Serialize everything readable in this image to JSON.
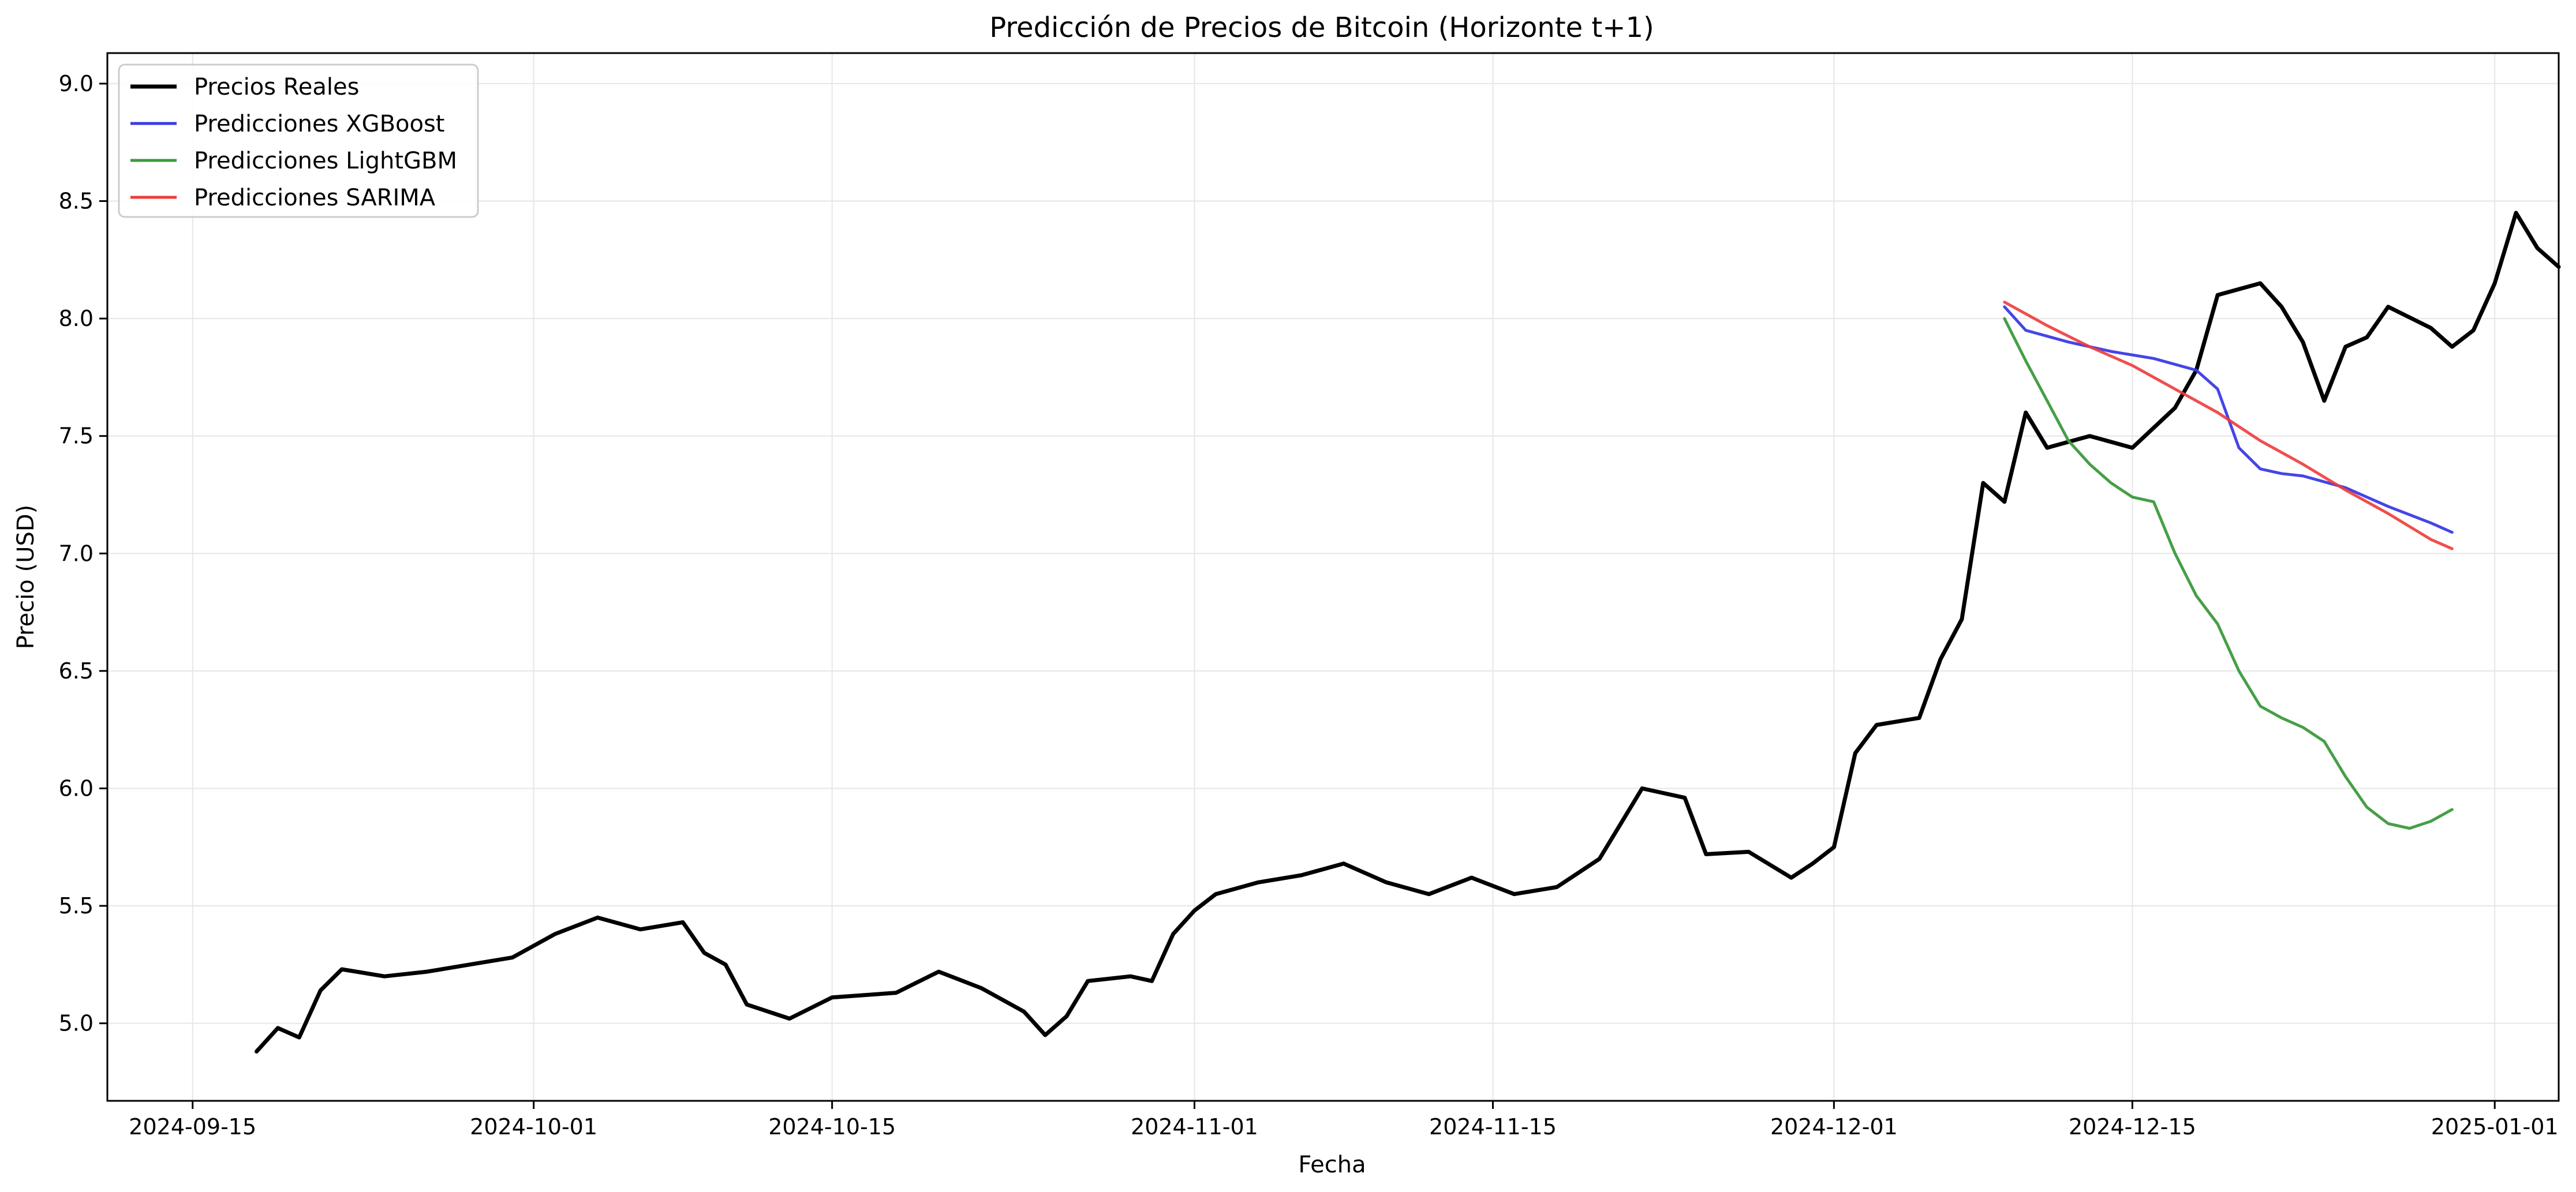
{
  "chart_data": {
    "type": "line",
    "title": "Predicción de Precios de Bitcoin (Horizonte t+1)",
    "xlabel": "Fecha",
    "ylabel": "Precio (USD)",
    "xlim": [
      "2024-09-11",
      "2025-01-04"
    ],
    "ylim": [
      4.67,
      9.13
    ],
    "x_ticks": [
      "2024-09-15",
      "2024-10-01",
      "2024-10-15",
      "2024-11-01",
      "2024-11-15",
      "2024-12-01",
      "2024-12-15",
      "2025-01-01"
    ],
    "y_ticks": [
      "5.0",
      "5.5",
      "6.0",
      "6.5",
      "7.0",
      "7.5",
      "8.0",
      "8.5",
      "9.0"
    ],
    "grid": true,
    "legend_position": "top-left",
    "series": [
      {
        "name": "Precios Reales",
        "color": "#000000",
        "points": [
          [
            "2024-09-18",
            4.88
          ],
          [
            "2024-09-19",
            4.98
          ],
          [
            "2024-09-20",
            4.94
          ],
          [
            "2024-09-21",
            5.14
          ],
          [
            "2024-09-22",
            5.23
          ],
          [
            "2024-09-24",
            5.2
          ],
          [
            "2024-09-26",
            5.22
          ],
          [
            "2024-09-28",
            5.25
          ],
          [
            "2024-09-30",
            5.28
          ],
          [
            "2024-10-02",
            5.38
          ],
          [
            "2024-10-04",
            5.45
          ],
          [
            "2024-10-06",
            5.4
          ],
          [
            "2024-10-08",
            5.43
          ],
          [
            "2024-10-09",
            5.3
          ],
          [
            "2024-10-10",
            5.25
          ],
          [
            "2024-10-11",
            5.08
          ],
          [
            "2024-10-13",
            5.02
          ],
          [
            "2024-10-15",
            5.11
          ],
          [
            "2024-10-18",
            5.13
          ],
          [
            "2024-10-20",
            5.22
          ],
          [
            "2024-10-22",
            5.15
          ],
          [
            "2024-10-24",
            5.05
          ],
          [
            "2024-10-25",
            4.95
          ],
          [
            "2024-10-26",
            5.03
          ],
          [
            "2024-10-27",
            5.18
          ],
          [
            "2024-10-29",
            5.2
          ],
          [
            "2024-10-30",
            5.18
          ],
          [
            "2024-10-31",
            5.38
          ],
          [
            "2024-11-01",
            5.48
          ],
          [
            "2024-11-02",
            5.55
          ],
          [
            "2024-11-04",
            5.6
          ],
          [
            "2024-11-06",
            5.63
          ],
          [
            "2024-11-08",
            5.68
          ],
          [
            "2024-11-10",
            5.6
          ],
          [
            "2024-11-12",
            5.55
          ],
          [
            "2024-11-14",
            5.62
          ],
          [
            "2024-11-16",
            5.55
          ],
          [
            "2024-11-18",
            5.58
          ],
          [
            "2024-11-20",
            5.7
          ],
          [
            "2024-11-21",
            5.85
          ],
          [
            "2024-11-22",
            6.0
          ],
          [
            "2024-11-24",
            5.96
          ],
          [
            "2024-11-25",
            5.72
          ],
          [
            "2024-11-27",
            5.73
          ],
          [
            "2024-11-29",
            5.62
          ],
          [
            "2024-11-30",
            5.68
          ],
          [
            "2024-12-01",
            5.75
          ],
          [
            "2024-12-02",
            6.15
          ],
          [
            "2024-12-03",
            6.27
          ],
          [
            "2024-12-05",
            6.3
          ],
          [
            "2024-12-06",
            6.55
          ],
          [
            "2024-12-07",
            6.72
          ],
          [
            "2024-12-08",
            7.3
          ],
          [
            "2024-12-09",
            7.22
          ],
          [
            "2024-12-10",
            7.6
          ],
          [
            "2024-12-11",
            7.45
          ],
          [
            "2024-12-13",
            7.5
          ],
          [
            "2024-12-15",
            7.45
          ],
          [
            "2024-12-17",
            7.62
          ],
          [
            "2024-12-18",
            7.78
          ],
          [
            "2024-12-19",
            8.1
          ],
          [
            "2024-12-21",
            8.15
          ],
          [
            "2024-12-22",
            8.05
          ],
          [
            "2024-12-23",
            7.9
          ],
          [
            "2024-12-24",
            7.65
          ],
          [
            "2024-12-25",
            7.88
          ],
          [
            "2024-12-26",
            7.92
          ],
          [
            "2024-12-27",
            8.05
          ],
          [
            "2024-12-29",
            7.96
          ],
          [
            "2024-12-30",
            7.88
          ],
          [
            "2024-12-31",
            7.95
          ],
          [
            "2025-01-01",
            8.15
          ],
          [
            "2025-01-02",
            8.45
          ],
          [
            "2025-01-03",
            8.3
          ],
          [
            "2025-01-04",
            8.22
          ]
        ]
      },
      {
        "name": "Predicciones XGBoost",
        "color": "#3b3be6",
        "points": [
          [
            "2024-12-09",
            8.05
          ],
          [
            "2024-12-10",
            7.95
          ],
          [
            "2024-12-12",
            7.9
          ],
          [
            "2024-12-14",
            7.86
          ],
          [
            "2024-12-16",
            7.83
          ],
          [
            "2024-12-18",
            7.78
          ],
          [
            "2024-12-19",
            7.7
          ],
          [
            "2024-12-20",
            7.45
          ],
          [
            "2024-12-21",
            7.36
          ],
          [
            "2024-12-22",
            7.34
          ],
          [
            "2024-12-23",
            7.33
          ],
          [
            "2024-12-25",
            7.28
          ],
          [
            "2024-12-27",
            7.2
          ],
          [
            "2024-12-29",
            7.13
          ],
          [
            "2024-12-30",
            7.09
          ]
        ]
      },
      {
        "name": "Predicciones LightGBM",
        "color": "#3c9a3c",
        "points": [
          [
            "2024-12-09",
            8.0
          ],
          [
            "2024-12-10",
            7.82
          ],
          [
            "2024-12-11",
            7.65
          ],
          [
            "2024-12-12",
            7.48
          ],
          [
            "2024-12-13",
            7.38
          ],
          [
            "2024-12-14",
            7.3
          ],
          [
            "2024-12-15",
            7.24
          ],
          [
            "2024-12-16",
            7.22
          ],
          [
            "2024-12-17",
            7.0
          ],
          [
            "2024-12-18",
            6.82
          ],
          [
            "2024-12-19",
            6.7
          ],
          [
            "2024-12-20",
            6.5
          ],
          [
            "2024-12-21",
            6.35
          ],
          [
            "2024-12-22",
            6.3
          ],
          [
            "2024-12-23",
            6.26
          ],
          [
            "2024-12-24",
            6.2
          ],
          [
            "2024-12-25",
            6.05
          ],
          [
            "2024-12-26",
            5.92
          ],
          [
            "2024-12-27",
            5.85
          ],
          [
            "2024-12-28",
            5.83
          ],
          [
            "2024-12-29",
            5.86
          ],
          [
            "2024-12-30",
            5.91
          ]
        ]
      },
      {
        "name": "Predicciones SARIMA",
        "color": "#ee3b3b",
        "points": [
          [
            "2024-12-09",
            8.07
          ],
          [
            "2024-12-11",
            7.97
          ],
          [
            "2024-12-13",
            7.88
          ],
          [
            "2024-12-15",
            7.8
          ],
          [
            "2024-12-17",
            7.7
          ],
          [
            "2024-12-19",
            7.6
          ],
          [
            "2024-12-21",
            7.48
          ],
          [
            "2024-12-23",
            7.38
          ],
          [
            "2024-12-25",
            7.27
          ],
          [
            "2024-12-27",
            7.17
          ],
          [
            "2024-12-29",
            7.06
          ],
          [
            "2024-12-30",
            7.02
          ]
        ]
      }
    ]
  }
}
